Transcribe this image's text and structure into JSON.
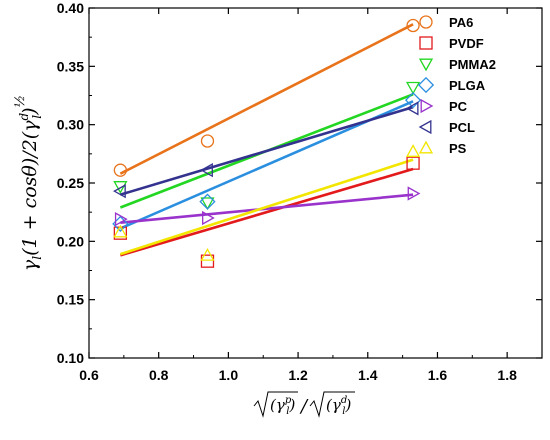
{
  "chart_data": {
    "type": "scatter",
    "title": "",
    "xlabel": "√(γₗᵖ)/√(γₗᵈ)",
    "ylabel": "γₗ(1 + cosθ)/2(γₗᵈ)^½",
    "xlim": [
      0.6,
      1.9
    ],
    "ylim": [
      0.1,
      0.4
    ],
    "x_ticks": [
      "0.6",
      "0.8",
      "1.0",
      "1.2",
      "1.4",
      "1.6",
      "1.8"
    ],
    "y_ticks": [
      "0.10",
      "0.15",
      "0.20",
      "0.25",
      "0.30",
      "0.35",
      "0.40"
    ],
    "grid": false,
    "legend_position": "top-right",
    "series": [
      {
        "name": "PA6",
        "color": "#E8731A",
        "marker": "circle",
        "x": [
          0.69,
          0.94,
          1.53
        ],
        "y": [
          0.261,
          0.286,
          0.385
        ],
        "fit": [
          [
            0.69,
            0.258
          ],
          [
            1.53,
            0.386
          ]
        ]
      },
      {
        "name": "PVDF",
        "color": "#E31A1C",
        "marker": "square",
        "x": [
          0.69,
          0.94,
          1.53
        ],
        "y": [
          0.207,
          0.183,
          0.267
        ],
        "fit": [
          [
            0.69,
            0.188
          ],
          [
            1.53,
            0.262
          ]
        ]
      },
      {
        "name": "PMMA2",
        "color": "#22D622",
        "marker": "triangle-down",
        "x": [
          0.69,
          0.94,
          1.53
        ],
        "y": [
          0.247,
          0.233,
          0.332
        ],
        "fit": [
          [
            0.69,
            0.229
          ],
          [
            1.53,
            0.326
          ]
        ]
      },
      {
        "name": "PLGA",
        "color": "#2B8FE0",
        "marker": "diamond",
        "x": [
          0.69,
          0.94,
          1.53
        ],
        "y": [
          0.215,
          0.234,
          0.321
        ],
        "fit": [
          [
            0.69,
            0.211
          ],
          [
            1.53,
            0.32
          ]
        ]
      },
      {
        "name": "PC",
        "color": "#9933CC",
        "marker": "triangle-right",
        "x": [
          0.69,
          0.94,
          1.53
        ],
        "y": [
          0.219,
          0.22,
          0.241
        ],
        "fit": [
          [
            0.69,
            0.216
          ],
          [
            1.53,
            0.24
          ]
        ]
      },
      {
        "name": "PCL",
        "color": "#33338F",
        "marker": "triangle-left",
        "x": [
          0.69,
          0.94,
          1.53
        ],
        "y": [
          0.243,
          0.261,
          0.314
        ],
        "fit": [
          [
            0.69,
            0.24
          ],
          [
            1.53,
            0.315
          ]
        ]
      },
      {
        "name": "PS",
        "color": "#F2E600",
        "marker": "triangle-up",
        "x": [
          0.69,
          0.94,
          1.53
        ],
        "y": [
          0.208,
          0.188,
          0.277
        ],
        "fit": [
          [
            0.69,
            0.189
          ],
          [
            1.53,
            0.27
          ]
        ]
      }
    ]
  }
}
